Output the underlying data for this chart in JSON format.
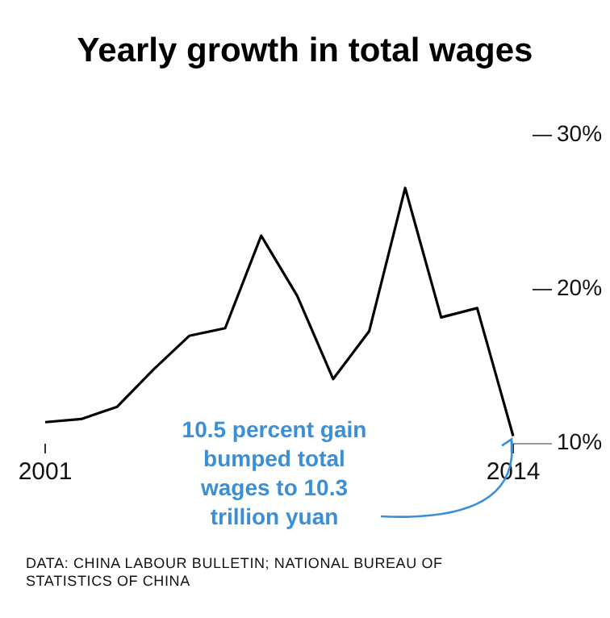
{
  "chart_data": {
    "type": "line",
    "title": "Yearly growth in total wages",
    "x": [
      2001,
      2002,
      2003,
      2004,
      2005,
      2006,
      2007,
      2008,
      2009,
      2010,
      2011,
      2012,
      2013,
      2014
    ],
    "series": [
      {
        "color": "#000000",
        "values": [
          11.4,
          11.6,
          12.4,
          14.8,
          17.0,
          17.5,
          23.5,
          19.6,
          14.2,
          17.3,
          26.6,
          18.2,
          18.8,
          10.5
        ]
      }
    ],
    "xlim": [
      2001,
      2014
    ],
    "xticks": [
      2001,
      2014
    ],
    "ylim": [
      10,
      30
    ],
    "yticks": [
      {
        "value": 10,
        "label": "10%"
      },
      {
        "value": 20,
        "label": "20%"
      },
      {
        "value": 30,
        "label": "30%"
      }
    ],
    "grid": false,
    "marker": "none",
    "line_style": "solid",
    "annotations": [
      "10.5 percent gain bumped total wages to 10.3 trillion yuan",
      "DATA: CHINA LABOUR BULLETIN; NATIONAL BUREAU OF STATISTICS OF CHINA"
    ]
  }
}
